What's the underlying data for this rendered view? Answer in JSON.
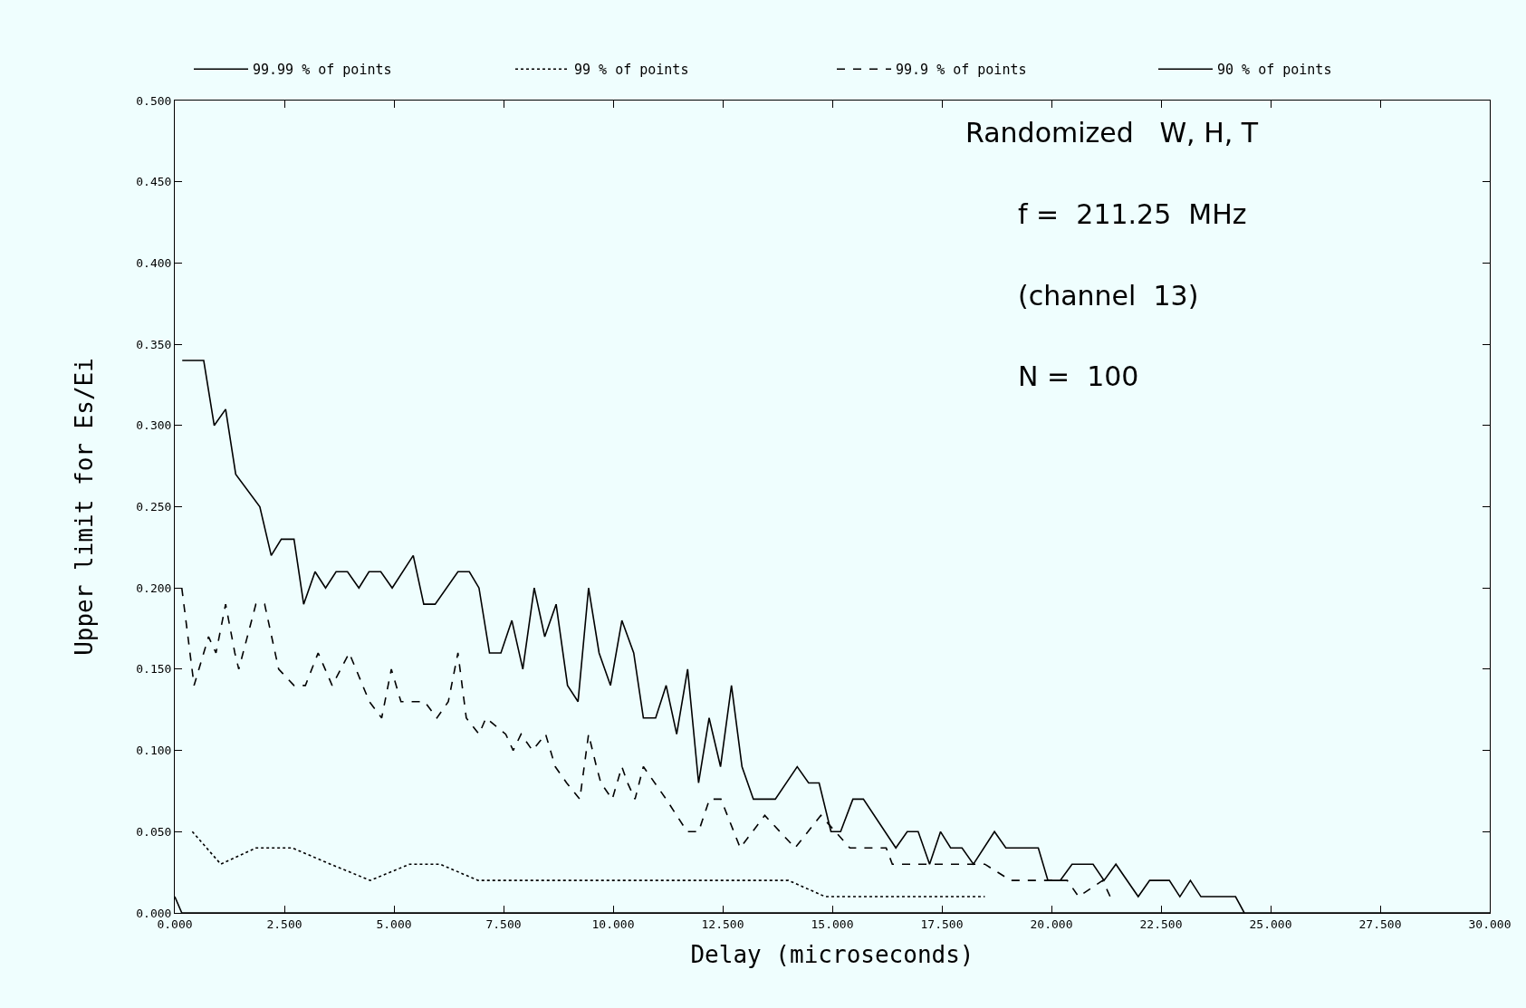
{
  "chart_data": {
    "type": "line",
    "xlabel": "Delay (microseconds)",
    "ylabel": "Upper limit for Es/Ei",
    "xlim": [
      0,
      30
    ],
    "ylim": [
      0,
      0.5
    ],
    "xticks": [
      {
        "value": 0,
        "label": "0.000"
      },
      {
        "value": 2.5,
        "label": "2.500"
      },
      {
        "value": 5,
        "label": "5.000"
      },
      {
        "value": 7.5,
        "label": "7.500"
      },
      {
        "value": 10,
        "label": "10.000"
      },
      {
        "value": 12.5,
        "label": "12.500"
      },
      {
        "value": 15,
        "label": "15.000"
      },
      {
        "value": 17.5,
        "label": "17.500"
      },
      {
        "value": 20,
        "label": "20.000"
      },
      {
        "value": 22.5,
        "label": "22.500"
      },
      {
        "value": 25,
        "label": "25.000"
      },
      {
        "value": 27.5,
        "label": "27.500"
      },
      {
        "value": 30,
        "label": "30.000"
      }
    ],
    "yticks": [
      {
        "value": 0,
        "label": "0.000"
      },
      {
        "value": 0.05,
        "label": "0.050"
      },
      {
        "value": 0.1,
        "label": "0.100"
      },
      {
        "value": 0.15,
        "label": "0.150"
      },
      {
        "value": 0.2,
        "label": "0.200"
      },
      {
        "value": 0.25,
        "label": "0.250"
      },
      {
        "value": 0.3,
        "label": "0.300"
      },
      {
        "value": 0.35,
        "label": "0.350"
      },
      {
        "value": 0.4,
        "label": "0.400"
      },
      {
        "value": 0.45,
        "label": "0.450"
      },
      {
        "value": 0.5,
        "label": "0.500"
      }
    ],
    "grid": false,
    "legend": "top",
    "marker": "none",
    "series": [
      {
        "name": "99.99 % of points",
        "color": "#000000",
        "line_style": "solid",
        "x": [
          0.17,
          0.66,
          0.9,
          1.16,
          1.39,
          1.94,
          2.2,
          2.43,
          2.72,
          2.94,
          3.2,
          3.44,
          3.68,
          3.94,
          4.2,
          4.43,
          4.7,
          4.96,
          5.44,
          5.68,
          5.94,
          6.46,
          6.72,
          6.94,
          7.18,
          7.44,
          7.69,
          7.94,
          8.2,
          8.44,
          8.7,
          8.96,
          9.2,
          9.44,
          9.68,
          9.94,
          10.2,
          10.47,
          10.69,
          10.97,
          11.21,
          11.45,
          11.7,
          11.95,
          12.19,
          12.45,
          12.7,
          12.94,
          13.2,
          13.7,
          14.2,
          14.46,
          14.7,
          14.97,
          15.19,
          15.47,
          15.71,
          16.45,
          16.71,
          16.96,
          17.22,
          17.47,
          17.7,
          17.96,
          18.22,
          18.7,
          18.96,
          19.22,
          19.7,
          19.92,
          20.2,
          20.47,
          20.95,
          21.2,
          21.47,
          21.98,
          22.24,
          22.69,
          22.93,
          23.17,
          23.41,
          24.2,
          24.4
        ],
        "values": [
          0.34,
          0.34,
          0.3,
          0.31,
          0.27,
          0.25,
          0.22,
          0.23,
          0.23,
          0.19,
          0.21,
          0.2,
          0.21,
          0.21,
          0.2,
          0.21,
          0.21,
          0.2,
          0.22,
          0.19,
          0.19,
          0.21,
          0.21,
          0.2,
          0.16,
          0.16,
          0.18,
          0.15,
          0.2,
          0.17,
          0.19,
          0.14,
          0.13,
          0.2,
          0.16,
          0.14,
          0.18,
          0.16,
          0.12,
          0.12,
          0.14,
          0.11,
          0.15,
          0.08,
          0.12,
          0.09,
          0.14,
          0.09,
          0.07,
          0.07,
          0.09,
          0.08,
          0.08,
          0.05,
          0.05,
          0.07,
          0.07,
          0.04,
          0.05,
          0.05,
          0.03,
          0.05,
          0.04,
          0.04,
          0.03,
          0.05,
          0.04,
          0.04,
          0.04,
          0.02,
          0.02,
          0.03,
          0.03,
          0.02,
          0.03,
          0.01,
          0.02,
          0.02,
          0.01,
          0.02,
          0.01,
          0.01,
          0.0
        ]
      },
      {
        "name": "99 % of points",
        "color": "#000000",
        "line_style": "dotted",
        "x": [
          0.4,
          1.05,
          1.85,
          2.68,
          3.55,
          4.46,
          5.36,
          6.05,
          6.92,
          7.63,
          8.35,
          9.04,
          9.75,
          10.8,
          11.61,
          12.54,
          13.27,
          14.0,
          14.84,
          15.62,
          16.71,
          17.8,
          18.48
        ],
        "values": [
          0.05,
          0.03,
          0.04,
          0.04,
          0.03,
          0.02,
          0.03,
          0.03,
          0.02,
          0.02,
          0.02,
          0.02,
          0.02,
          0.02,
          0.02,
          0.02,
          0.02,
          0.02,
          0.01,
          0.01,
          0.01,
          0.01,
          0.01
        ]
      },
      {
        "name": "99.9 % of points",
        "color": "#000000",
        "line_style": "dashed",
        "x": [
          0.16,
          0.3,
          0.44,
          0.77,
          0.94,
          1.16,
          1.37,
          1.46,
          1.85,
          2.05,
          2.37,
          2.72,
          2.98,
          3.27,
          3.59,
          3.98,
          4.44,
          4.72,
          4.94,
          5.16,
          5.7,
          5.98,
          6.24,
          6.46,
          6.65,
          6.94,
          7.1,
          7.55,
          7.72,
          7.9,
          8.16,
          8.46,
          8.68,
          8.94,
          9.24,
          9.44,
          9.62,
          9.72,
          9.98,
          10.2,
          10.33,
          10.5,
          10.69,
          11.21,
          11.69,
          11.95,
          12.2,
          12.46,
          12.9,
          13.46,
          14.15,
          14.74,
          15.4,
          16.23,
          16.37,
          17.37,
          18.48,
          19.07,
          19.66,
          20.36,
          20.62,
          21.17,
          21.34
        ],
        "values": [
          0.2,
          0.17,
          0.14,
          0.17,
          0.16,
          0.19,
          0.16,
          0.15,
          0.19,
          0.19,
          0.15,
          0.14,
          0.14,
          0.16,
          0.14,
          0.16,
          0.13,
          0.12,
          0.15,
          0.13,
          0.13,
          0.12,
          0.13,
          0.16,
          0.12,
          0.11,
          0.12,
          0.11,
          0.1,
          0.11,
          0.1,
          0.11,
          0.09,
          0.08,
          0.07,
          0.11,
          0.09,
          0.08,
          0.07,
          0.09,
          0.08,
          0.07,
          0.09,
          0.07,
          0.05,
          0.05,
          0.07,
          0.07,
          0.04,
          0.06,
          0.04,
          0.06,
          0.04,
          0.04,
          0.03,
          0.03,
          0.03,
          0.02,
          0.02,
          0.02,
          0.01,
          0.02,
          0.01
        ]
      },
      {
        "name": "90 % of points",
        "color": "#000000",
        "line_style": "solid",
        "x": [
          0,
          0.16,
          30
        ],
        "values": [
          0.01,
          0,
          0
        ]
      }
    ],
    "annotations": [
      "Randomized   W, H, T",
      "f =  211.25  MHz",
      "(channel  13)",
      "N =  100"
    ]
  }
}
